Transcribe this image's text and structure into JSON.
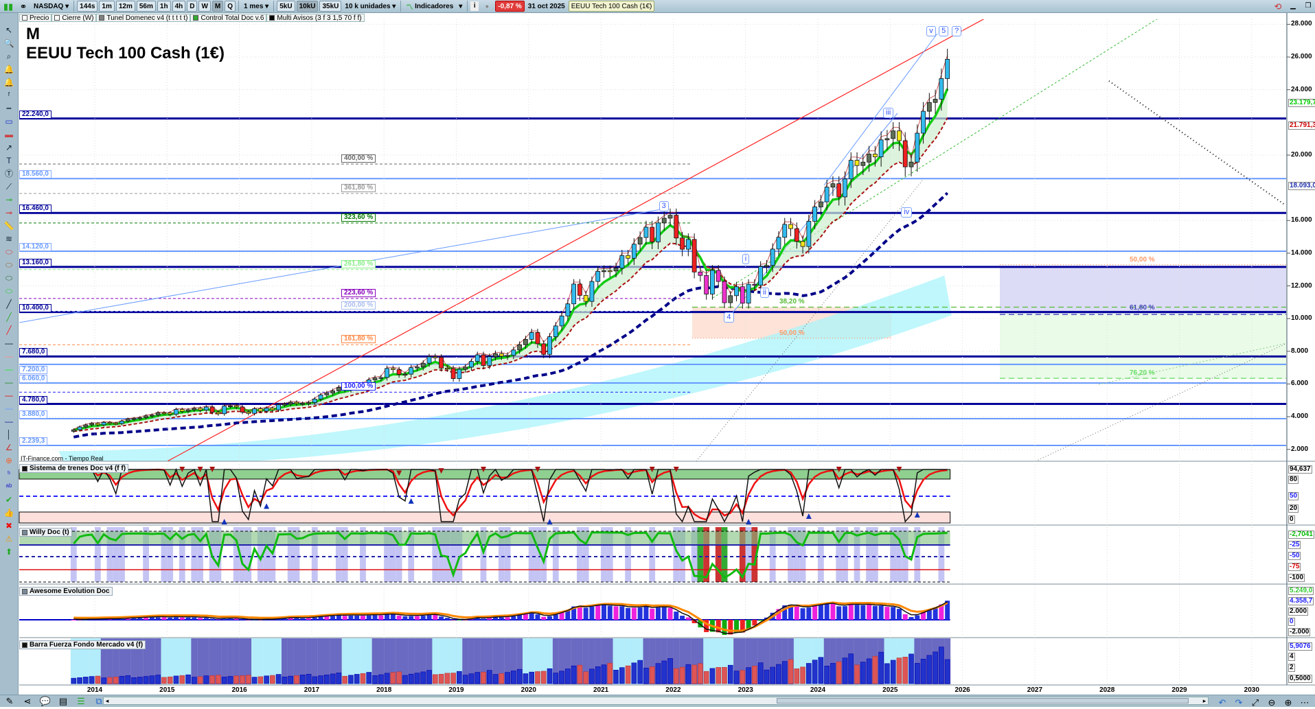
{
  "toolbar": {
    "market": "NASDAQ",
    "timeframes": [
      "144s",
      "1m",
      "12m",
      "56m",
      "1h",
      "4h",
      "D",
      "W",
      "M",
      "Q"
    ],
    "active_timeframe": "M",
    "period": "1 mes",
    "units": [
      "5kU",
      "10kU",
      "35kU"
    ],
    "active_unit": "10kU",
    "units_select": "10 k unidades",
    "indicators": "Indicadores",
    "change": "-0,87 %",
    "date": "31 oct 2025",
    "instrument": "EEUU Tech 100 Cash (1€)"
  },
  "legend": [
    {
      "label": "Precio",
      "color": "#ffffff"
    },
    {
      "label": "Cierre (W)",
      "color": "#ffffff"
    },
    {
      "label": "Tunel Domenec v4 (t t t t t)",
      "color": "#808080"
    },
    {
      "label": "Control Total Doc v.6",
      "color": "#33aa33"
    },
    {
      "label": "Multi Avisos (3 f 3 1,5 70 f f)",
      "color": "#000000"
    }
  ],
  "title": {
    "period": "M",
    "instrument": "EEUU Tech 100 Cash (1€)"
  },
  "source": "IT-Finance.com - Tiempo Real",
  "levels": [
    {
      "label": "22.240,0",
      "price": 22240,
      "type": "major"
    },
    {
      "label": "18.560,0",
      "price": 18560,
      "type": "minor"
    },
    {
      "label": "16.460,0",
      "price": 16460,
      "type": "major"
    },
    {
      "label": "14.120,0",
      "price": 14120,
      "type": "minor"
    },
    {
      "label": "13.160,0",
      "price": 13160,
      "type": "major"
    },
    {
      "label": "10.400,0",
      "price": 10400,
      "type": "major"
    },
    {
      "label": "7.680,0",
      "price": 7680,
      "type": "major"
    },
    {
      "label": "7.200,0",
      "price": 7200,
      "type": "minor"
    },
    {
      "label": "6.060,0",
      "price": 6060,
      "type": "minor"
    },
    {
      "label": "4.780,0",
      "price": 4780,
      "type": "major"
    },
    {
      "label": "3.880,0",
      "price": 3880,
      "type": "minor"
    },
    {
      "label": "2.239,3",
      "price": 2239.3,
      "type": "minor"
    }
  ],
  "fib_ext": [
    {
      "label": "400,00 %",
      "price": 19450,
      "color": "#666666"
    },
    {
      "label": "361,80 %",
      "price": 17650,
      "color": "#999999"
    },
    {
      "label": "323,60 %",
      "price": 15850,
      "color": "#007700"
    },
    {
      "label": "261,80 %",
      "price": 13000,
      "color": "#88ee88"
    },
    {
      "label": "223,60 %",
      "price": 11230,
      "color": "#8800bb"
    },
    {
      "label": "200,00 %",
      "price": 10450,
      "color": "#aabbee"
    },
    {
      "label": "161,80 %",
      "price": 8400,
      "color": "#ff8844"
    },
    {
      "label": "100,00 %",
      "price": 5500,
      "color": "#2222ff"
    }
  ],
  "fib_retr": [
    {
      "label": "38,20 %",
      "price": 10700,
      "color": "#55bb33"
    },
    {
      "label": "50,00 %",
      "price": 8800,
      "color": "#ff9966"
    },
    {
      "label": "50,00 %",
      "price": 13300,
      "color": "#ff9966"
    },
    {
      "label": "61,80 %",
      "price": 10350,
      "color": "#4444bb"
    },
    {
      "label": "76,20 %",
      "price": 6350,
      "color": "#66dd66"
    }
  ],
  "waves": [
    {
      "label": "3",
      "year": 2021.85,
      "price": 16900
    },
    {
      "label": "i",
      "year": 2023.0,
      "price": 13650
    },
    {
      "label": "ii",
      "year": 2023.25,
      "price": 11600
    },
    {
      "label": "4",
      "year": 2022.75,
      "price": 10100
    },
    {
      "label": "iii",
      "year": 2024.95,
      "price": 22600
    },
    {
      "label": "iv",
      "year": 2025.2,
      "price": 16500
    },
    {
      "label": "v",
      "year": 2025.55,
      "price": 27600
    },
    {
      "label": "5",
      "year": 2025.72,
      "price": 27600
    },
    {
      "label": "?",
      "year": 2025.9,
      "price": 27600
    }
  ],
  "price_axis": [
    "28.000",
    "26.000",
    "24.000",
    "20.000",
    "16.000",
    "14.000",
    "12.000",
    "10.000",
    "8.000",
    "6.000",
    "4.000",
    "2.000"
  ],
  "price_axis_values": [
    28000,
    26000,
    24000,
    20000,
    16000,
    14000,
    12000,
    10000,
    8000,
    6000,
    4000,
    2000
  ],
  "price_tags": [
    {
      "label": "23.179,7",
      "price": 23179.7,
      "color": "#00cc00"
    },
    {
      "label": "21.791,3",
      "price": 21791.3,
      "color": "#cc0000"
    },
    {
      "label": "18.093,0",
      "price": 18093,
      "color": "#2233aa"
    }
  ],
  "panels": [
    {
      "title": "Sistema de trenes Doc v4 (f f)",
      "tags": [
        {
          "label": "94,637",
          "color": "#000"
        },
        {
          "label": "80",
          "color": "#000"
        },
        {
          "label": "50",
          "color": "#22f"
        },
        {
          "label": "20",
          "color": "#000"
        },
        {
          "label": "0",
          "color": "#000"
        }
      ]
    },
    {
      "title": "Willy Doc (t)",
      "tags": [
        {
          "label": "-2,7041",
          "color": "#00bb00"
        },
        {
          "label": "-25",
          "color": "#22f"
        },
        {
          "label": "-50",
          "color": "#22f"
        },
        {
          "label": "-75",
          "color": "#d00"
        },
        {
          "label": "-100",
          "color": "#000"
        }
      ]
    },
    {
      "title": "Awesome Evolution Doc",
      "tags": [
        {
          "label": "5.249,0",
          "color": "#33cc33"
        },
        {
          "label": "4.358,7",
          "color": "#22f"
        },
        {
          "label": "2.000",
          "color": "#000"
        },
        {
          "label": "0",
          "color": "#22f"
        },
        {
          "label": "-2.000",
          "color": "#000"
        }
      ]
    },
    {
      "title": "Barra Fuerza Fondo Mercado v4 (f)",
      "tags": [
        {
          "label": "5,9076",
          "color": "#22f"
        },
        {
          "label": "4",
          "color": "#000"
        },
        {
          "label": "2",
          "color": "#000"
        },
        {
          "label": "0,5000",
          "color": "#000"
        }
      ]
    }
  ],
  "years": [
    "2014",
    "2015",
    "2016",
    "2017",
    "2018",
    "2019",
    "2020",
    "2021",
    "2022",
    "2023",
    "2024",
    "2025",
    "2026",
    "2027",
    "2028",
    "2029",
    "2030"
  ],
  "left_tools": [
    "pointer-icon",
    "zoom-icon",
    "zoom-area-icon",
    "alert-edit-icon",
    "alert-icon",
    "fibo-icon",
    "fibo-line-icon",
    "rectangle-icon",
    "filled-rectangle-icon",
    "arrow-icon",
    "text-icon",
    "text-bubble-icon",
    "segment-icon",
    "green-marker-icon",
    "red-marker-icon",
    "ruler-icon",
    "channel-icon",
    "ellipse-red-icon",
    "ellipse-brown-icon",
    "ellipse-green-icon",
    "ellipse-lime-icon",
    "black-line-icon",
    "green-line-icon",
    "red-line-icon",
    "hline-black-icon",
    "hline-salmon-icon",
    "hline-lime-icon",
    "hline-green-icon",
    "hline-red-icon",
    "hline-blue-icon",
    "hline-navy-icon",
    "vline-icon",
    "angle-icon",
    "circle-plus-icon",
    "elliott-icon",
    "abc-icon",
    "check-icon",
    "thumbs-up-icon",
    "cross-icon",
    "warning-icon",
    "arrow-up-icon"
  ],
  "colors": {
    "major_level": "#000099",
    "minor_level": "#6699ff",
    "ma_fast": "#11cc11",
    "ma_mid": "#aa1111",
    "ma_slow": "#000088",
    "cloud": "#aaf4fb",
    "trend": "#ff2222"
  },
  "chart_data": {
    "type": "candlestick",
    "interval": "monthly",
    "start": "2013-09",
    "closes": [
      3200,
      3370,
      3500,
      3590,
      3500,
      3650,
      3600,
      3580,
      3730,
      3850,
      3890,
      3940,
      4050,
      4100,
      4240,
      4236,
      4150,
      4440,
      4330,
      4420,
      4510,
      4400,
      4590,
      4270,
      4180,
      4650,
      4670,
      4590,
      4280,
      4200,
      4480,
      4340,
      4520,
      4420,
      4730,
      4770,
      4880,
      4800,
      4810,
      4860,
      5080,
      5330,
      5440,
      5580,
      5790,
      5650,
      5880,
      5990,
      5980,
      6250,
      6370,
      6400,
      6950,
      6880,
      6580,
      6600,
      7000,
      7040,
      7270,
      7660,
      7630,
      6970,
      6950,
      6330,
      6900,
      7030,
      7380,
      7780,
      7130,
      7670,
      7850,
      7700,
      7750,
      8080,
      8400,
      8730,
      9150,
      8460,
      7810,
      8890,
      9550,
      10160,
      10900,
      12110,
      11420,
      11050,
      12270,
      12890,
      12930,
      12910,
      13090,
      13860,
      13690,
      14550,
      14960,
      15590,
      14690,
      15850,
      16140,
      16320,
      14930,
      14240,
      14840,
      12850,
      12640,
      11500,
      12950,
      12270,
      10970,
      11400,
      11950,
      10940,
      12100,
      12040,
      13180,
      13250,
      14250,
      14970,
      15760,
      15500,
      14720,
      14410,
      15950,
      16830,
      17140,
      18040,
      18250,
      17440,
      18540,
      19680,
      19360,
      19570,
      20060,
      19890,
      20930,
      21010,
      21480,
      20880,
      19280,
      19570,
      21340,
      22680,
      23220,
      23420,
      24680,
      25860
    ],
    "y_axis_range": [
      1000,
      28500
    ],
    "x_axis_range": [
      "2013",
      "2030"
    ]
  }
}
